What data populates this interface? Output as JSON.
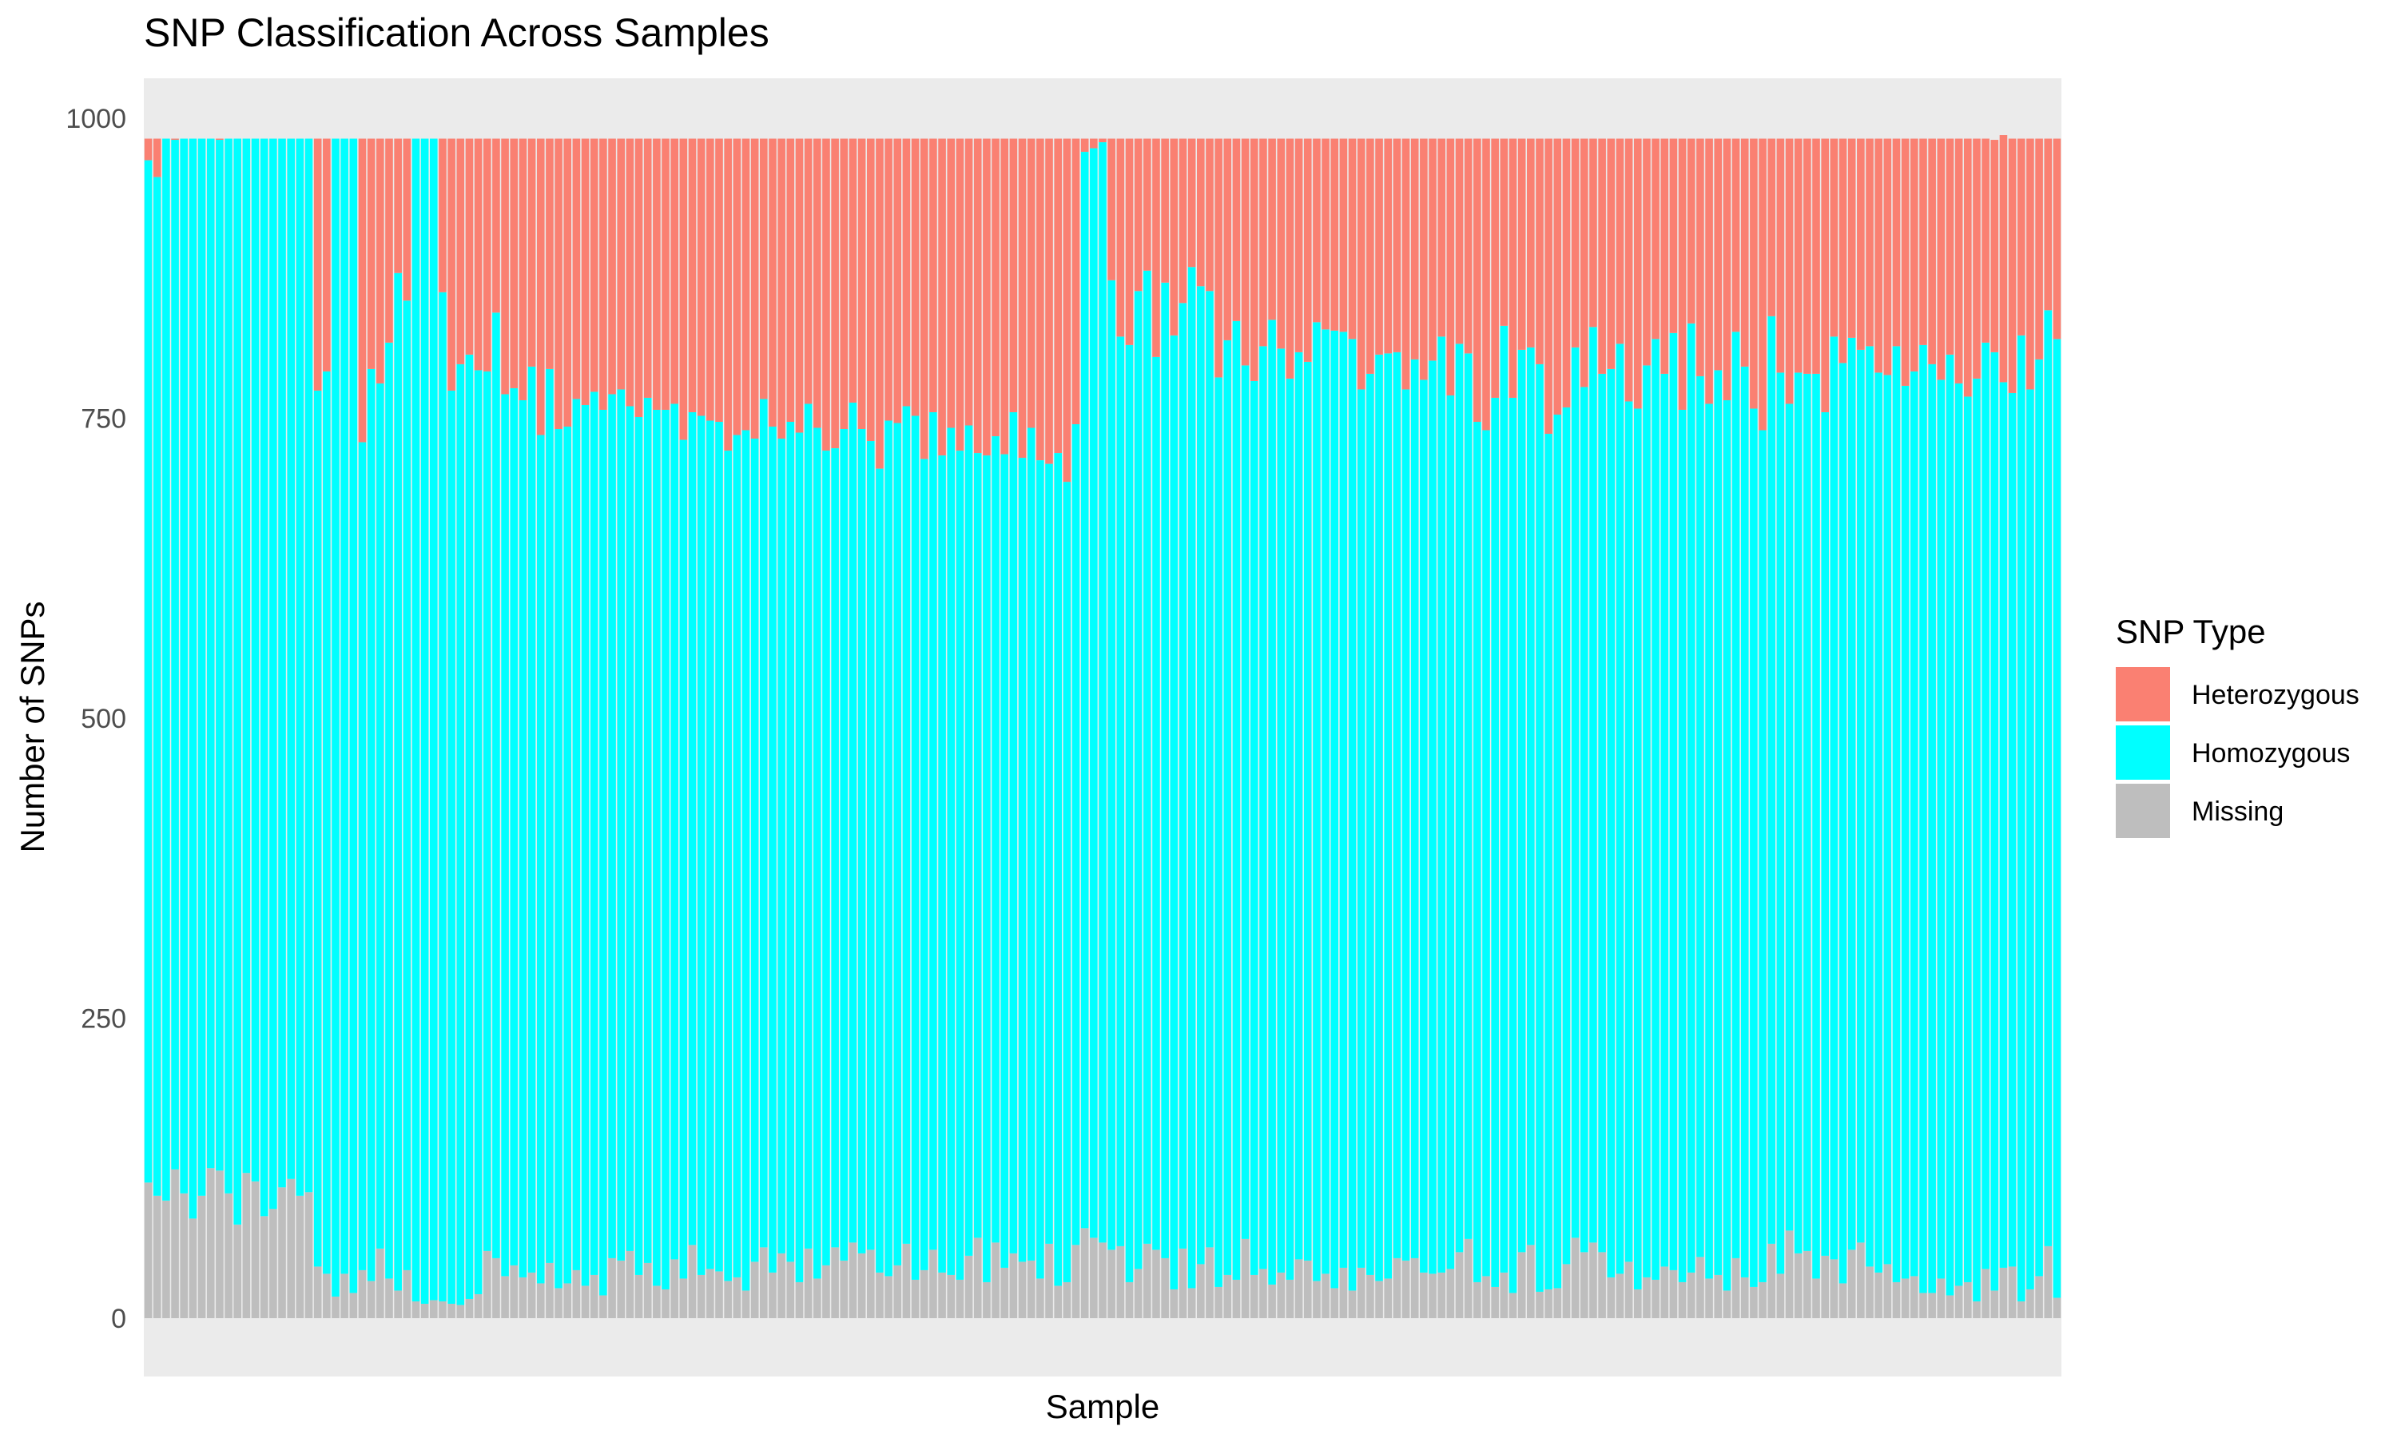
{
  "chart_data": {
    "type": "bar",
    "stacked": true,
    "title": "SNP Classification Across Samples",
    "xlabel": "Sample",
    "ylabel": "Number of SNPs",
    "ylim": [
      0,
      1000
    ],
    "yticks": [
      0,
      250,
      500,
      750,
      1000
    ],
    "x_tick_labels_shown": false,
    "grid": false,
    "panel_background": "#EBEBEB",
    "legend": {
      "title": "SNP Type",
      "position": "right",
      "entries": [
        "Heterozygous",
        "Homozygous",
        "Missing"
      ]
    },
    "colors": {
      "Heterozygous": "#FA8072",
      "Homozygous": "#00FFFF",
      "Missing": "#BEBEBE"
    },
    "total_per_sample": 983,
    "series": [
      {
        "name": "Missing",
        "values": [
          113,
          102,
          98,
          124,
          104,
          83,
          102,
          125,
          123,
          104,
          78,
          121,
          114,
          85,
          91,
          109,
          116,
          102,
          105,
          43,
          37,
          18,
          37,
          21,
          40,
          31,
          58,
          33,
          23,
          40,
          14,
          12,
          15,
          14,
          12,
          11,
          16,
          20,
          56,
          50,
          35,
          44,
          34,
          38,
          29,
          46,
          25,
          29,
          40,
          27,
          36,
          19,
          50,
          48,
          56,
          36,
          46,
          27,
          24,
          49,
          33,
          61,
          36,
          41,
          39,
          31,
          34,
          23,
          47,
          59,
          38,
          54,
          47,
          30,
          58,
          33,
          44,
          59,
          48,
          63,
          54,
          57,
          38,
          35,
          44,
          62,
          32,
          40,
          57,
          38,
          36,
          32,
          52,
          67,
          30,
          63,
          42,
          54,
          47,
          48,
          33,
          62,
          27,
          30,
          61,
          75,
          67,
          63,
          57,
          60,
          30,
          41,
          62,
          57,
          50,
          24,
          58,
          25,
          45,
          59,
          26,
          36,
          32,
          66,
          36,
          41,
          28,
          38,
          32,
          49,
          48,
          31,
          37,
          25,
          42,
          23,
          42,
          36,
          31,
          33,
          50,
          48,
          50,
          38,
          37,
          38,
          41,
          55,
          66,
          30,
          35,
          26,
          38,
          21,
          55,
          61,
          22,
          24,
          25,
          45,
          67,
          55,
          63,
          55,
          34,
          37,
          47,
          24,
          34,
          32,
          43,
          40,
          30,
          38,
          51,
          33,
          36,
          23,
          50,
          34,
          26,
          30,
          62,
          37,
          73,
          54,
          56,
          33,
          52,
          49,
          29,
          57,
          63,
          43,
          38,
          45,
          30,
          33,
          35,
          21,
          21,
          33,
          19,
          27,
          30,
          14,
          41,
          23,
          42,
          43,
          14,
          24,
          35,
          60,
          17
        ],
        "_unused": null
      },
      {
        "name": "Homozygous",
        "values": [
          852,
          849,
          885,
          858,
          879,
          900,
          881,
          858,
          859,
          879,
          905,
          862,
          869,
          898,
          892,
          874,
          867,
          881,
          878,
          730,
          752,
          965,
          946,
          962,
          690,
          760,
          721,
          780,
          848,
          808,
          969,
          971,
          968,
          841,
          761,
          784,
          787,
          770,
          733,
          788,
          735,
          731,
          731,
          755,
          707,
          745,
          716,
          714,
          726,
          734,
          736,
          738,
          720,
          726,
          704,
          715,
          721,
          730,
          733,
          713,
          699,
          694,
          716,
          707,
          708,
          692,
          702,
          717,
          686,
          707,
          705,
          679,
          700,
          708,
          704,
          709,
          679,
          666,
          693,
          700,
          687,
          674,
          670,
          713,
          702,
          698,
          720,
          676,
          698,
          681,
          706,
          691,
          692,
          654,
          689,
          672,
          678,
          701,
          670,
          694,
          682,
          650,
          694,
          667,
          684,
          897,
          908,
          917,
          808,
          758,
          781,
          815,
          811,
          744,
          813,
          795,
          788,
          851,
          815,
          797,
          758,
          779,
          799,
          728,
          745,
          769,
          804,
          770,
          751,
          756,
          749,
          799,
          787,
          798,
          780,
          793,
          732,
          751,
          772,
          771,
          755,
          726,
          749,
          744,
          761,
          780,
          728,
          757,
          738,
          717,
          705,
          741,
          789,
          746,
          752,
          748,
          773,
          713,
          728,
          714,
          742,
          721,
          763,
          732,
          757,
          775,
          717,
          734,
          760,
          784,
          744,
          781,
          727,
          791,
          734,
          729,
          754,
          742,
          772,
          759,
          732,
          710,
          773,
          751,
          689,
          734,
          731,
          754,
          703,
          769,
          767,
          760,
          744,
          767,
          750,
          741,
          780,
          744,
          754,
          790,
          774,
          749,
          784,
          752,
          738,
          769,
          772,
          782,
          738,
          728,
          805,
          750,
          764,
          780,
          799
        ],
        "_unused": null
      },
      {
        "name": "Heterozygous",
        "values": [
          18,
          32,
          0,
          1,
          0,
          0,
          0,
          0,
          1,
          0,
          0,
          0,
          0,
          0,
          0,
          0,
          0,
          0,
          0,
          210,
          194,
          0,
          0,
          0,
          253,
          192,
          204,
          170,
          112,
          135,
          0,
          0,
          0,
          128,
          210,
          188,
          180,
          193,
          194,
          145,
          213,
          208,
          218,
          190,
          247,
          192,
          242,
          240,
          217,
          222,
          211,
          226,
          213,
          209,
          223,
          232,
          216,
          226,
          226,
          221,
          251,
          228,
          231,
          235,
          236,
          260,
          247,
          243,
          250,
          217,
          240,
          250,
          236,
          245,
          221,
          241,
          260,
          258,
          242,
          220,
          242,
          252,
          275,
          235,
          237,
          223,
          231,
          267,
          228,
          264,
          241,
          260,
          239,
          262,
          264,
          248,
          263,
          228,
          266,
          241,
          268,
          271,
          262,
          286,
          238,
          11,
          8,
          3,
          118,
          165,
          172,
          127,
          110,
          182,
          120,
          164,
          137,
          107,
          123,
          127,
          199,
          168,
          152,
          189,
          202,
          173,
          151,
          175,
          200,
          178,
          186,
          153,
          159,
          160,
          161,
          167,
          209,
          196,
          180,
          179,
          178,
          209,
          184,
          201,
          185,
          165,
          214,
          171,
          179,
          236,
          243,
          216,
          156,
          216,
          176,
          174,
          188,
          246,
          230,
          224,
          174,
          207,
          157,
          196,
          192,
          171,
          219,
          225,
          189,
          167,
          196,
          162,
          226,
          154,
          198,
          221,
          193,
          218,
          161,
          190,
          225,
          243,
          148,
          195,
          221,
          195,
          196,
          196,
          228,
          165,
          187,
          166,
          176,
          173,
          195,
          197,
          173,
          206,
          194,
          172,
          188,
          201,
          180,
          204,
          215,
          200,
          170,
          177,
          206,
          212,
          164,
          209,
          184,
          143,
          167
        ],
        "_unused": null
      }
    ]
  }
}
